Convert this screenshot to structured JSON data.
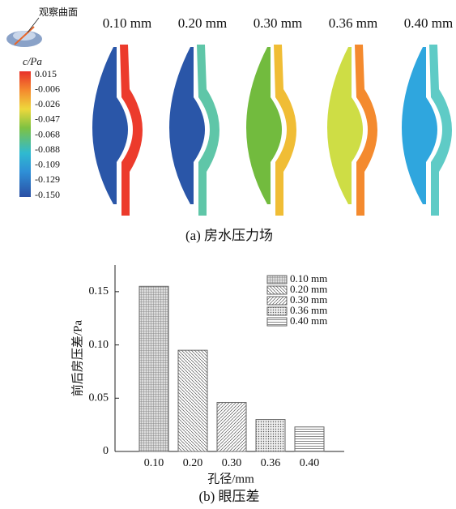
{
  "panel_a": {
    "inset_label": "观察曲面",
    "colorbar_title": "c/Pa",
    "colorbar_ticks": [
      "0.015",
      "-0.006",
      "-0.026",
      "-0.047",
      "-0.068",
      "-0.088",
      "-0.109",
      "-0.129",
      "-0.150"
    ],
    "columns": [
      "0.10 mm",
      "0.20 mm",
      "0.30 mm",
      "0.36 mm",
      "0.40 mm"
    ],
    "caption": "(a) 房水压力场"
  },
  "chart_data": {
    "type": "bar",
    "categories": [
      "0.10",
      "0.20",
      "0.30",
      "0.36",
      "0.40"
    ],
    "values": [
      0.155,
      0.095,
      0.046,
      0.03,
      0.023
    ],
    "legend": [
      "0.10 mm",
      "0.20 mm",
      "0.30 mm",
      "0.36 mm",
      "0.40 mm"
    ],
    "xlabel": "孔径/mm",
    "ylabel": "前后房压差/Pa",
    "ylim": [
      0,
      0.175
    ],
    "yticks": [
      0,
      0.05,
      {
        "value": 0.1,
        "label": "0.10"
      },
      0.15
    ],
    "caption": "(b) 眼压差"
  }
}
